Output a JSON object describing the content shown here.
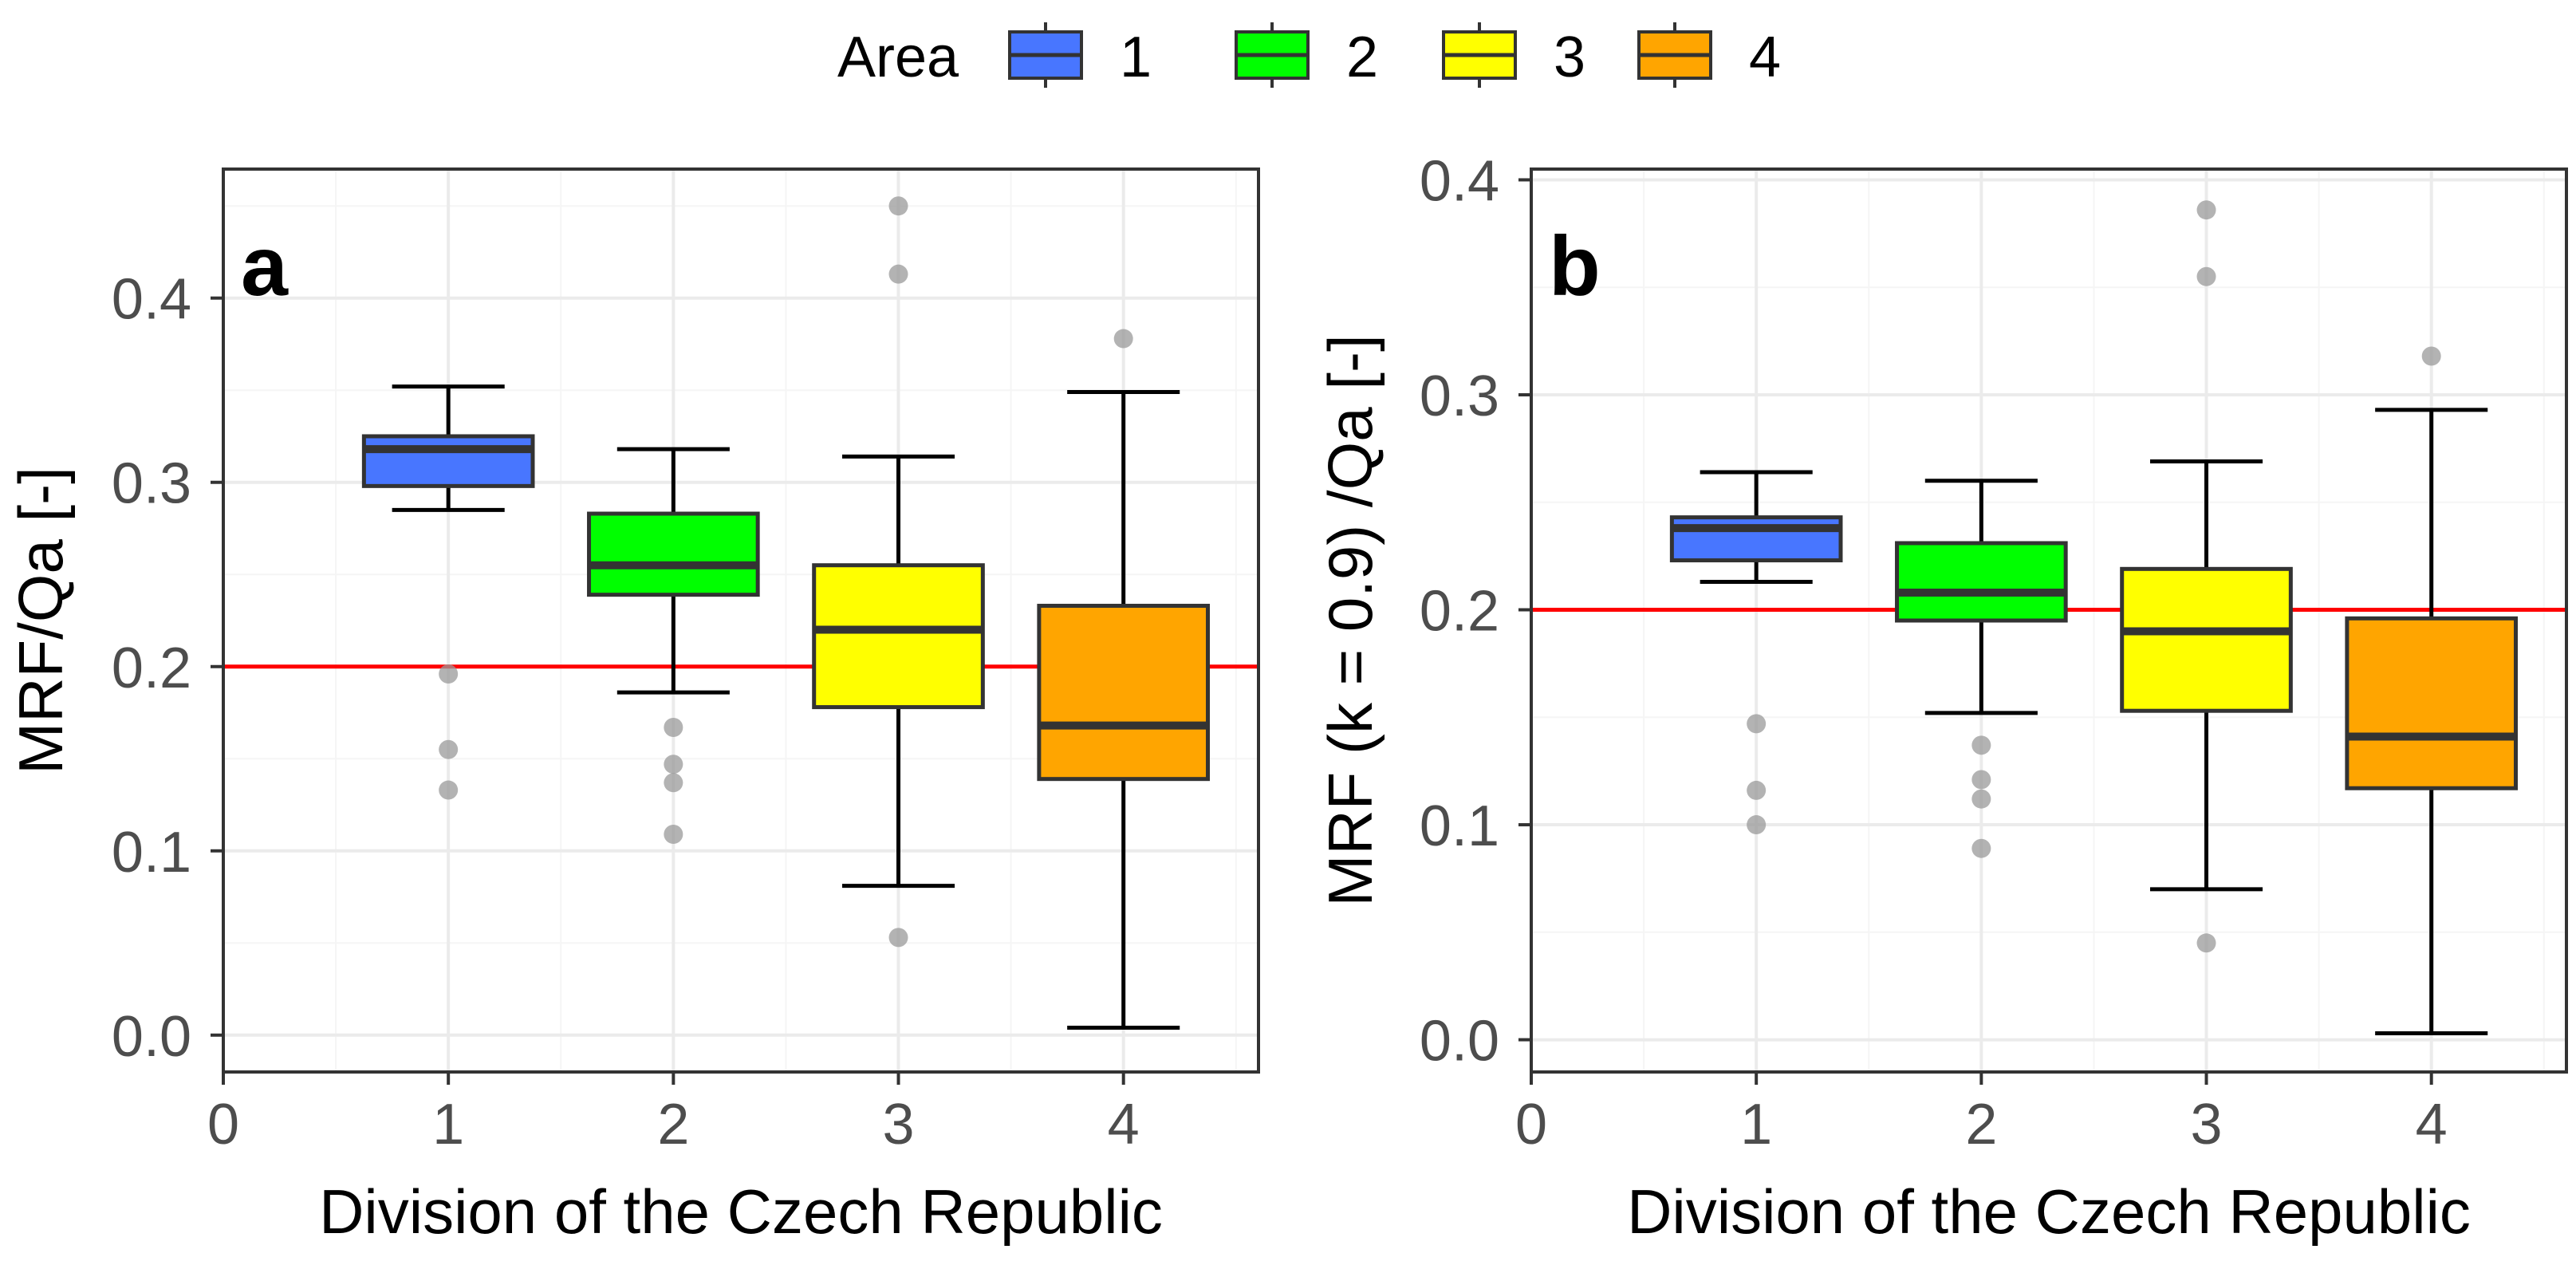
{
  "chart_data": [
    {
      "type": "box",
      "panel_label": "a",
      "xlabel": "Division of the Czech Republic",
      "ylabel": "MRF/Qa [-]",
      "xlim": [
        0,
        4.6
      ],
      "ylim": [
        -0.02,
        0.47
      ],
      "x_ticks": [
        "0",
        "1",
        "2",
        "3",
        "4"
      ],
      "y_ticks": [
        "0.0",
        "0.1",
        "0.2",
        "0.3",
        "0.4"
      ],
      "reference_line": 0.2,
      "boxes": [
        {
          "area": "1",
          "whisker_low": 0.285,
          "q1": 0.298,
          "median": 0.318,
          "q3": 0.325,
          "whisker_high": 0.352,
          "outliers": [
            0.196,
            0.155,
            0.133
          ]
        },
        {
          "area": "2",
          "whisker_low": 0.186,
          "q1": 0.239,
          "median": 0.255,
          "q3": 0.283,
          "whisker_high": 0.318,
          "outliers": [
            0.167,
            0.147,
            0.137,
            0.109
          ]
        },
        {
          "area": "3",
          "whisker_low": 0.081,
          "q1": 0.178,
          "median": 0.22,
          "q3": 0.255,
          "whisker_high": 0.314,
          "outliers": [
            0.45,
            0.413,
            0.053
          ]
        },
        {
          "area": "4",
          "whisker_low": 0.004,
          "q1": 0.139,
          "median": 0.168,
          "q3": 0.233,
          "whisker_high": 0.349,
          "outliers": [
            0.378
          ]
        }
      ]
    },
    {
      "type": "box",
      "panel_label": "b",
      "xlabel": "Division of the Czech Republic",
      "ylabel": "MRF (k = 0.9) /Qa [-]",
      "xlim": [
        0,
        4.6
      ],
      "ylim": [
        -0.015,
        0.405
      ],
      "x_ticks": [
        "0",
        "1",
        "2",
        "3",
        "4"
      ],
      "y_ticks": [
        "0.0",
        "0.1",
        "0.2",
        "0.3",
        "0.4"
      ],
      "reference_line": 0.2,
      "boxes": [
        {
          "area": "1",
          "whisker_low": 0.213,
          "q1": 0.223,
          "median": 0.238,
          "q3": 0.243,
          "whisker_high": 0.264,
          "outliers": [
            0.147,
            0.116,
            0.1
          ]
        },
        {
          "area": "2",
          "whisker_low": 0.152,
          "q1": 0.195,
          "median": 0.208,
          "q3": 0.231,
          "whisker_high": 0.26,
          "outliers": [
            0.137,
            0.121,
            0.112,
            0.089
          ]
        },
        {
          "area": "3",
          "whisker_low": 0.07,
          "q1": 0.153,
          "median": 0.19,
          "q3": 0.219,
          "whisker_high": 0.269,
          "outliers": [
            0.386,
            0.355,
            0.045
          ]
        },
        {
          "area": "4",
          "whisker_low": 0.003,
          "q1": 0.117,
          "median": 0.141,
          "q3": 0.196,
          "whisker_high": 0.293,
          "outliers": [
            0.318
          ]
        }
      ]
    }
  ],
  "legend": {
    "title": "Area",
    "items": [
      {
        "label": "1",
        "color": "#4876ff"
      },
      {
        "label": "2",
        "color": "#00ff00"
      },
      {
        "label": "3",
        "color": "#ffff00"
      },
      {
        "label": "4",
        "color": "#ffa500"
      }
    ]
  },
  "colors": {
    "reference_line": "#ff0000",
    "outlier": "#999999",
    "box_border": "#333333",
    "whisker": "#000000",
    "grid_major": "#ebebeb",
    "grid_minor": "#f5f5f5"
  }
}
